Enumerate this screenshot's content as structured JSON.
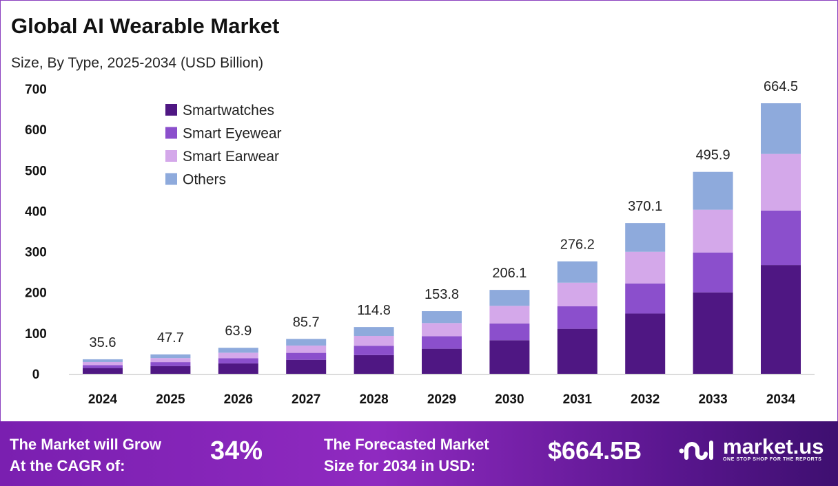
{
  "chart_data": {
    "type": "bar",
    "stacked": true,
    "title": "Global AI Wearable Market",
    "subtitle": "Size, By Type, 2025-2034 (USD Billion)",
    "categories": [
      "2024",
      "2025",
      "2026",
      "2027",
      "2028",
      "2029",
      "2030",
      "2031",
      "2032",
      "2033",
      "2034"
    ],
    "totals": [
      "35.6",
      "47.7",
      "63.9",
      "85.7",
      "114.8",
      "153.8",
      "206.1",
      "276.2",
      "370.1",
      "495.9",
      "664.5"
    ],
    "series": [
      {
        "name": "Smartwatches",
        "color": "#4f1783",
        "values": [
          14.2,
          19.1,
          25.6,
          34.3,
          45.9,
          61.5,
          82.4,
          110.5,
          148.0,
          200.0,
          267.0
        ]
      },
      {
        "name": "Smart Eyewear",
        "color": "#8b4fcc",
        "values": [
          7.1,
          9.5,
          12.8,
          17.1,
          23.0,
          30.8,
          41.2,
          55.2,
          74.0,
          98.0,
          134.0
        ]
      },
      {
        "name": "Smart Earwear",
        "color": "#d4a8ea",
        "values": [
          7.5,
          10.0,
          13.4,
          18.0,
          24.1,
          32.3,
          43.3,
          58.0,
          77.7,
          105.0,
          139.0
        ]
      },
      {
        "name": "Others",
        "color": "#8eaadc",
        "values": [
          6.8,
          9.1,
          12.1,
          16.3,
          21.8,
          29.2,
          39.2,
          52.5,
          70.4,
          92.9,
          124.5
        ]
      }
    ],
    "yticks": [
      "0",
      "100",
      "200",
      "300",
      "400",
      "500",
      "600",
      "700"
    ],
    "ylim": [
      0,
      700
    ],
    "grid": false,
    "legend": "top-left"
  },
  "footer": {
    "cagr_label_1": "The Market will Grow",
    "cagr_label_2": "At the CAGR of:",
    "cagr_value": "34%",
    "forecast_label_1": "The Forecasted Market",
    "forecast_label_2": "Size for 2034 in USD:",
    "forecast_value": "$664.5B",
    "logo_text": "market.us",
    "logo_tagline": "ONE STOP SHOP FOR THE REPORTS"
  }
}
